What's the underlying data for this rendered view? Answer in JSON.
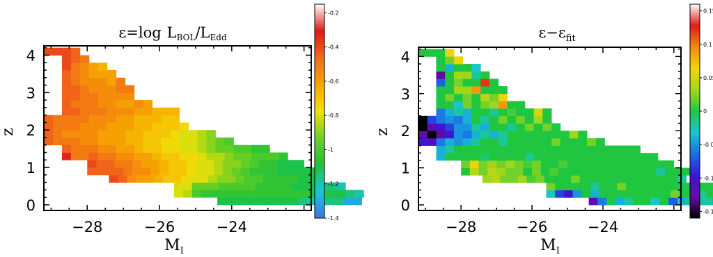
{
  "chart_data": [
    {
      "type": "heatmap",
      "title_main": "ε=log",
      "title_frac_num_base": "L",
      "title_frac_num_sub": "BOL",
      "title_frac_sep": "/",
      "title_frac_den_base": "L",
      "title_frac_den_sub": "Edd",
      "xlabel_base": "M",
      "xlabel_sub": "I",
      "ylabel": "z",
      "xlim": [
        -29.2,
        -21.8
      ],
      "ylim": [
        -0.15,
        4.25
      ],
      "xticks": [
        {
          "v": -28,
          "label": "−28"
        },
        {
          "v": -26,
          "label": "−26"
        },
        {
          "v": -24,
          "label": "−24"
        }
      ],
      "yticks": [
        {
          "v": 0,
          "label": "0"
        },
        {
          "v": 1,
          "label": "1"
        },
        {
          "v": 2,
          "label": "2"
        },
        {
          "v": 3,
          "label": "3"
        },
        {
          "v": 4,
          "label": "4"
        }
      ],
      "colorbar": {
        "range": [
          -1.4,
          -0.15
        ],
        "ticks": [
          {
            "v": -0.2,
            "label": "-0.2"
          },
          {
            "v": -0.4,
            "label": "-0.4"
          },
          {
            "v": -0.6,
            "label": "-0.6"
          },
          {
            "v": -0.8,
            "label": "-0.8"
          },
          {
            "v": -1.0,
            "label": "-1"
          },
          {
            "v": -1.2,
            "label": "-1.2"
          },
          {
            "v": -1.4,
            "label": "-1.4"
          }
        ],
        "stops": [
          "#3a78e6",
          "#19c6d8",
          "#1dc23c",
          "#6fd020",
          "#f2e10a",
          "#f7a800",
          "#f26a18",
          "#e21818",
          "#ffffff"
        ]
      },
      "cell_width": 0.25,
      "cell_height": 0.2,
      "rows": [
        {
          "z": 0.1,
          "x0": -24.4,
          "values": [
            -1.1,
            -1.1,
            -1.1,
            -1.1,
            -1.1,
            -1.1,
            -1.1,
            -1.1,
            -1.1,
            -1.15,
            -1.2,
            -1.2,
            -1.15,
            -1.15,
            -1.3,
            -1.3
          ]
        },
        {
          "z": 0.3,
          "x0": -25.6,
          "values": [
            -0.8,
            -0.85,
            -1.0,
            -1.05,
            -1.05,
            -1.05,
            -1.05,
            -1.05,
            -1.05,
            -1.05,
            -1.05,
            -1.05,
            -1.05,
            -1.05,
            -1.05,
            -1.1,
            -1.05,
            -1.1,
            -1.1,
            -1.15,
            -1.2
          ]
        },
        {
          "z": 0.5,
          "x0": -25.6,
          "values": [
            -0.8,
            -0.8,
            -0.95,
            -0.95,
            -0.95,
            -1.0,
            -1.0,
            -1.0,
            -1.0,
            -1.05,
            -1.05,
            -1.05,
            -1.05,
            -1.1,
            -1.1,
            -1.1,
            -1.15,
            -1.15,
            -1.2
          ]
        },
        {
          "z": 0.7,
          "x0": -27.4,
          "values": [
            -0.4,
            -0.45,
            -0.55,
            -0.6,
            -0.6,
            -0.65,
            -0.7,
            -0.7,
            -0.75,
            -0.8,
            -0.8,
            -0.85,
            -0.9,
            -0.9,
            -0.95,
            -1.0,
            -1.0,
            -1.05,
            -1.05,
            -1.05,
            -1.05,
            -1.1,
            -1.1
          ]
        },
        {
          "z": 0.9,
          "x0": -28.0,
          "values": [
            -0.45,
            -0.45,
            -0.45,
            -0.45,
            -0.5,
            -0.55,
            -0.55,
            -0.6,
            -0.65,
            -0.7,
            -0.7,
            -0.75,
            -0.8,
            -0.8,
            -0.85,
            -0.9,
            -0.95,
            -1.0,
            -1.05,
            -1.05,
            -1.05,
            -1.1,
            -1.1,
            -1.1,
            -1.1,
            -1.05
          ]
        },
        {
          "z": 1.1,
          "x0": -28.0,
          "values": [
            -0.4,
            -0.45,
            -0.45,
            -0.5,
            -0.5,
            -0.55,
            -0.6,
            -0.6,
            -0.65,
            -0.7,
            -0.7,
            -0.75,
            -0.8,
            -0.8,
            -0.85,
            -0.9,
            -0.9,
            -0.95,
            -1.0,
            -1.05,
            -1.05,
            -1.1,
            -1.1,
            -1.1
          ]
        },
        {
          "z": 1.3,
          "x0": -28.7,
          "values": [
            -0.3,
            -0.5,
            -0.5,
            -0.45,
            -0.5,
            -0.5,
            -0.55,
            -0.55,
            -0.6,
            -0.6,
            -0.65,
            -0.7,
            -0.7,
            -0.75,
            -0.75,
            -0.8,
            -0.85,
            -0.85,
            -0.9,
            -0.95,
            -0.95,
            -1.0,
            -1.0,
            -1.0,
            -1.05
          ]
        },
        {
          "z": 1.5,
          "x0": -28.7,
          "values": [
            -0.45,
            -0.5,
            -0.5,
            -0.5,
            -0.55,
            -0.55,
            -0.6,
            -0.6,
            -0.65,
            -0.7,
            -0.7,
            -0.75,
            -0.75,
            -0.8,
            -0.8,
            -0.85,
            -0.9,
            -0.95,
            -0.95,
            -1.0,
            -1.0,
            -1.05,
            -1.05
          ]
        },
        {
          "z": 1.7,
          "x0": -29.2,
          "values": [
            -0.45,
            -0.5,
            -0.5,
            -0.5,
            -0.55,
            -0.55,
            -0.6,
            -0.6,
            -0.6,
            -0.65,
            -0.65,
            -0.7,
            -0.7,
            -0.75,
            -0.75,
            -0.8,
            -0.8,
            -0.85,
            -0.9,
            -0.95,
            -1.0
          ]
        },
        {
          "z": 1.9,
          "x0": -29.2,
          "values": [
            -0.45,
            -0.5,
            -0.55,
            -0.55,
            -0.55,
            -0.55,
            -0.6,
            -0.6,
            -0.6,
            -0.65,
            -0.65,
            -0.7,
            -0.7,
            -0.7,
            -0.75,
            -0.8,
            -0.8,
            -0.85,
            -0.9
          ]
        },
        {
          "z": 2.1,
          "x0": -29.2,
          "values": [
            -0.45,
            -0.5,
            -0.5,
            -0.5,
            -0.55,
            -0.55,
            -0.55,
            -0.6,
            -0.6,
            -0.6,
            -0.65,
            -0.65,
            -0.7,
            -0.7,
            -0.7,
            -0.75
          ]
        },
        {
          "z": 2.3,
          "x0": -29.2,
          "values": [
            -0.45,
            -0.5,
            -0.5,
            -0.5,
            -0.5,
            -0.55,
            -0.55,
            -0.55,
            -0.6,
            -0.6,
            -0.65,
            -0.65,
            -0.65,
            -0.7,
            -0.7
          ]
        },
        {
          "z": 2.5,
          "x0": -28.7,
          "values": [
            -0.45,
            -0.45,
            -0.5,
            -0.5,
            -0.5,
            -0.55,
            -0.55,
            -0.55,
            -0.6,
            -0.6,
            -0.65,
            -0.65,
            -0.65
          ]
        },
        {
          "z": 2.7,
          "x0": -28.7,
          "values": [
            -0.45,
            -0.5,
            -0.5,
            -0.5,
            -0.55,
            -0.55,
            -0.6,
            -0.6,
            -0.55,
            -0.6
          ]
        },
        {
          "z": 2.9,
          "x0": -28.7,
          "values": [
            -0.45,
            -0.45,
            -0.5,
            -0.5,
            -0.55,
            -0.55,
            -0.55,
            -0.55
          ]
        },
        {
          "z": 3.1,
          "x0": -28.7,
          "values": [
            -0.45,
            -0.45,
            -0.5,
            -0.55,
            -0.55,
            -0.55,
            -0.5,
            -0.5
          ]
        },
        {
          "z": 3.3,
          "x0": -28.7,
          "values": [
            -0.45,
            -0.5,
            -0.55,
            -0.55,
            -0.55,
            -0.6,
            -0.5
          ]
        },
        {
          "z": 3.5,
          "x0": -28.7,
          "values": [
            -0.45,
            -0.5,
            -0.55,
            -0.6,
            -0.6,
            -0.6
          ]
        },
        {
          "z": 3.7,
          "x0": -28.7,
          "values": [
            -0.4,
            -0.5,
            -0.55,
            -0.6,
            -0.65
          ]
        },
        {
          "z": 3.9,
          "x0": -28.7,
          "values": [
            -0.4,
            -0.45,
            -0.5
          ]
        },
        {
          "z": 4.1,
          "x0": -29.2,
          "values": [
            -0.4,
            -0.4,
            -0.4,
            -0.45
          ]
        }
      ]
    },
    {
      "type": "heatmap",
      "title_main": "ε−ε",
      "title_sub": "fit",
      "xlabel_base": "M",
      "xlabel_sub": "I",
      "ylabel": "z",
      "xlim": [
        -29.2,
        -21.8
      ],
      "ylim": [
        -0.15,
        4.25
      ],
      "xticks": [
        {
          "v": -28,
          "label": "−28"
        },
        {
          "v": -26,
          "label": "−26"
        },
        {
          "v": -24,
          "label": "−24"
        }
      ],
      "yticks": [
        {
          "v": 0,
          "label": "0"
        },
        {
          "v": 1,
          "label": "1"
        },
        {
          "v": 2,
          "label": "2"
        },
        {
          "v": 3,
          "label": "3"
        },
        {
          "v": 4,
          "label": "4"
        }
      ],
      "colorbar": {
        "range": [
          -0.16,
          0.16
        ],
        "ticks": [
          {
            "v": 0.15,
            "label": "0.15"
          },
          {
            "v": 0.1,
            "label": "0.1"
          },
          {
            "v": 0.05,
            "label": "0.05"
          },
          {
            "v": 0,
            "label": "0"
          },
          {
            "v": -0.05,
            "label": "-0.05"
          },
          {
            "v": -0.1,
            "label": "-0.1"
          },
          {
            "v": -0.15,
            "label": "-0.15"
          }
        ],
        "stops": [
          "#000000",
          "#6a0aa8",
          "#3a16d6",
          "#1a6ee6",
          "#18c6d2",
          "#20c640",
          "#a6d81a",
          "#f2d40a",
          "#f28a10",
          "#e21818",
          "#ffffff"
        ]
      },
      "cell_width": 0.25,
      "cell_height": 0.2,
      "rows": [
        {
          "z": 0.1,
          "x0": -24.4,
          "values": [
            -0.12,
            -0.06,
            0.0,
            -0.04,
            -0.02,
            0.0,
            0.0,
            -0.03,
            0.0,
            -0.07,
            -0.04,
            -0.02,
            -0.02,
            -0.02,
            -0.08,
            -0.12
          ]
        },
        {
          "z": 0.3,
          "x0": -25.6,
          "values": [
            -0.03,
            -0.08,
            -0.1,
            -0.05,
            0.0,
            -0.04,
            0.0,
            0.0,
            0.0,
            0.0,
            0.0,
            0.0,
            0.0,
            0.0,
            0.02,
            0.0,
            0.0,
            -0.02,
            0.0,
            -0.03,
            0.0
          ]
        },
        {
          "z": 0.5,
          "x0": -25.6,
          "values": [
            0.02,
            0.0,
            0.0,
            0.0,
            0.0,
            -0.02,
            0.0,
            0.0,
            0.02,
            0.0,
            0.0,
            0.0,
            0.0,
            0.0,
            0.0,
            0.0,
            0.0,
            0.0,
            0.0
          ]
        },
        {
          "z": 0.7,
          "x0": -27.4,
          "values": [
            0.03,
            0.04,
            0.02,
            0.02,
            0.03,
            0.01,
            0.02,
            0.0,
            0.0,
            0.0,
            0.02,
            0.0,
            0.0,
            0.0,
            0.0,
            0.0,
            0.0,
            0.0,
            0.0,
            0.0,
            0.0,
            0.0,
            -0.02
          ]
        },
        {
          "z": 0.9,
          "x0": -28.0,
          "values": [
            0.0,
            0.04,
            0.02,
            0.04,
            0.03,
            0.02,
            0.02,
            0.0,
            0.02,
            0.0,
            0.01,
            0.0,
            0.0,
            0.0,
            0.0,
            0.0,
            0.0,
            0.0,
            0.0,
            0.0,
            0.0,
            0.0,
            -0.02,
            0.0,
            0.0,
            0.0
          ]
        },
        {
          "z": 1.1,
          "x0": -28.0,
          "values": [
            0.02,
            0.06,
            0.02,
            0.03,
            0.02,
            0.03,
            0.02,
            0.01,
            0.02,
            0.0,
            0.0,
            0.01,
            0.0,
            0.0,
            0.0,
            0.0,
            0.0,
            0.0,
            0.0,
            0.0,
            0.0,
            0.0,
            0.0,
            0.0
          ]
        },
        {
          "z": 1.3,
          "x0": -28.7,
          "values": [
            -0.04,
            0.0,
            0.0,
            0.0,
            0.0,
            -0.01,
            0.0,
            0.0,
            0.0,
            0.0,
            -0.02,
            0.0,
            0.0,
            0.0,
            0.0,
            0.0,
            0.0,
            0.0,
            0.0,
            0.0,
            0.0,
            0.0,
            0.0,
            0.0,
            0.0
          ]
        },
        {
          "z": 1.5,
          "x0": -28.7,
          "values": [
            -0.04,
            -0.02,
            0.0,
            0.0,
            0.0,
            0.0,
            0.0,
            0.0,
            0.0,
            0.0,
            0.0,
            0.0,
            0.0,
            0.0,
            0.0,
            0.0,
            0.0,
            0.0,
            0.0,
            0.0,
            0.0,
            0.0,
            0.0
          ]
        },
        {
          "z": 1.7,
          "x0": -29.2,
          "values": [
            -0.1,
            -0.11,
            -0.06,
            -0.04,
            -0.05,
            -0.04,
            -0.02,
            0.0,
            0.0,
            -0.02,
            0.0,
            0.0,
            0.0,
            0.0,
            0.0,
            0.02,
            0.0,
            0.0,
            0.0,
            0.02,
            0.0
          ]
        },
        {
          "z": 1.9,
          "x0": -29.2,
          "values": [
            -0.12,
            -0.16,
            -0.13,
            -0.1,
            -0.05,
            -0.06,
            -0.04,
            -0.02,
            -0.04,
            -0.02,
            0.0,
            0.0,
            0.0,
            0.0,
            0.0,
            0.0,
            0.0,
            0.03,
            0.0
          ]
        },
        {
          "z": 2.1,
          "x0": -29.2,
          "values": [
            -0.16,
            -0.12,
            -0.1,
            -0.08,
            -0.05,
            -0.05,
            -0.02,
            -0.04,
            0.0,
            0.0,
            -0.02,
            0.0,
            0.02,
            0.0,
            0.02,
            0.0
          ]
        },
        {
          "z": 2.3,
          "x0": -29.2,
          "values": [
            -0.16,
            -0.08,
            -0.06,
            -0.05,
            -0.06,
            -0.04,
            0.0,
            -0.02,
            0.0,
            0.02,
            0.0,
            0.02,
            0.0,
            0.03,
            0.0
          ]
        },
        {
          "z": 2.5,
          "x0": -28.7,
          "values": [
            -0.06,
            -0.04,
            -0.02,
            -0.04,
            0.0,
            0.0,
            -0.02,
            0.0,
            0.01,
            0.0,
            0.0,
            0.05,
            0.0
          ]
        },
        {
          "z": 2.7,
          "x0": -28.7,
          "values": [
            0.0,
            0.0,
            -0.03,
            0.02,
            0.0,
            0.02,
            0.03,
            0.09,
            0.0,
            0.0
          ]
        },
        {
          "z": 2.9,
          "x0": -28.7,
          "values": [
            0.0,
            0.02,
            0.0,
            0.02,
            0.0,
            0.04,
            0.02,
            0.06
          ]
        },
        {
          "z": 3.1,
          "x0": -28.7,
          "values": [
            0.0,
            0.0,
            0.03,
            0.03,
            0.09,
            0.0,
            0.0,
            0.0
          ]
        },
        {
          "z": 3.3,
          "x0": -28.7,
          "values": [
            -0.07,
            0.0,
            0.02,
            0.0,
            0.0,
            0.12,
            0.0
          ]
        },
        {
          "z": 3.5,
          "x0": -28.7,
          "values": [
            -0.13,
            0.0,
            0.03,
            0.03,
            -0.02,
            0.0
          ]
        },
        {
          "z": 3.7,
          "x0": -28.7,
          "values": [
            0.0,
            -0.04,
            0.0,
            0.0,
            -0.03
          ]
        },
        {
          "z": 3.9,
          "x0": -28.7,
          "values": [
            0.0,
            0.02,
            0.06
          ]
        },
        {
          "z": 4.1,
          "x0": -29.2,
          "values": [
            0.0,
            0.0,
            0.0,
            0.06
          ]
        }
      ]
    }
  ]
}
